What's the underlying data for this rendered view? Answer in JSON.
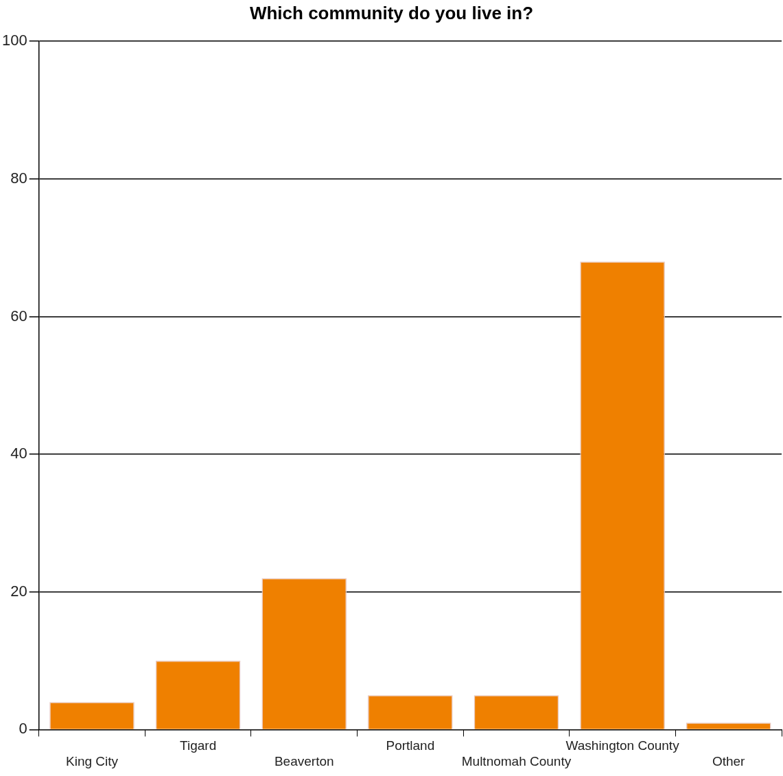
{
  "chart_data": {
    "type": "bar",
    "title": "Which community do you live in?",
    "categories": [
      "King City",
      "Tigard",
      "Beaverton",
      "Portland",
      "Multnomah County",
      "Washington County",
      "Other"
    ],
    "values": [
      4,
      10,
      22,
      5,
      5,
      68,
      1
    ],
    "color": "#ef8000",
    "ylim": [
      0,
      100
    ],
    "yticks": [
      0,
      20,
      40,
      60,
      80,
      100
    ],
    "grid": "y",
    "legend": false
  }
}
